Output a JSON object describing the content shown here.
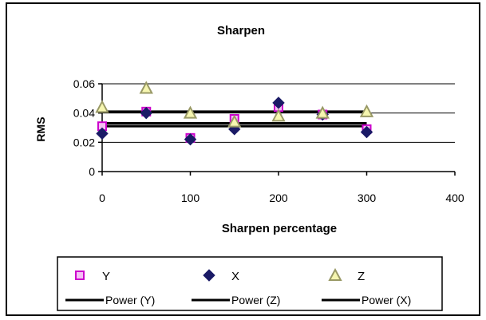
{
  "chart_data": {
    "type": "scatter",
    "title": "Sharpen",
    "xlabel": "Sharpen percentage",
    "ylabel": "RMS",
    "xlim": [
      0,
      400
    ],
    "ylim": [
      0,
      0.06
    ],
    "x_ticks": [
      {
        "value": 0,
        "label": "0"
      },
      {
        "value": 100,
        "label": "100"
      },
      {
        "value": 200,
        "label": "200"
      },
      {
        "value": 300,
        "label": "300"
      },
      {
        "value": 400,
        "label": "400"
      }
    ],
    "y_ticks": [
      {
        "value": 0,
        "label": "0"
      },
      {
        "value": 0.02,
        "label": "0.02"
      },
      {
        "value": 0.04,
        "label": "0.04"
      },
      {
        "value": 0.06,
        "label": "0.06"
      }
    ],
    "grid": true,
    "legend_position": "bottom",
    "series": [
      {
        "name": "Y",
        "marker": "square",
        "color": "#cc00cc",
        "x": [
          0,
          50,
          100,
          150,
          200,
          250,
          300
        ],
        "y": [
          0.031,
          0.041,
          0.023,
          0.036,
          0.044,
          0.039,
          0.029
        ]
      },
      {
        "name": "X",
        "marker": "diamond",
        "color": "#1a1a66",
        "x": [
          0,
          50,
          100,
          150,
          200,
          250,
          300
        ],
        "y": [
          0.026,
          0.04,
          0.022,
          0.029,
          0.047,
          0.039,
          0.027
        ]
      },
      {
        "name": "Z",
        "marker": "triangle",
        "color": "#999966",
        "x": [
          0,
          50,
          100,
          150,
          200,
          250,
          300
        ],
        "y": [
          0.044,
          0.057,
          0.04,
          0.034,
          0.038,
          0.04,
          0.041
        ]
      }
    ],
    "trendlines": [
      {
        "name": "Power (Y)",
        "y_start": 0.033,
        "y_end": 0.033,
        "x_range": [
          0,
          300
        ],
        "color": "#000000"
      },
      {
        "name": "Power (Z)",
        "y_start": 0.041,
        "y_end": 0.041,
        "x_range": [
          0,
          300
        ],
        "color": "#000000"
      },
      {
        "name": "Power (X)",
        "y_start": 0.031,
        "y_end": 0.031,
        "x_range": [
          0,
          300
        ],
        "color": "#000000"
      }
    ],
    "legend": {
      "row1": [
        "Y",
        "X",
        "Z"
      ],
      "row2": [
        "Power (Y)",
        "Power (Z)",
        "Power (X)"
      ]
    }
  }
}
